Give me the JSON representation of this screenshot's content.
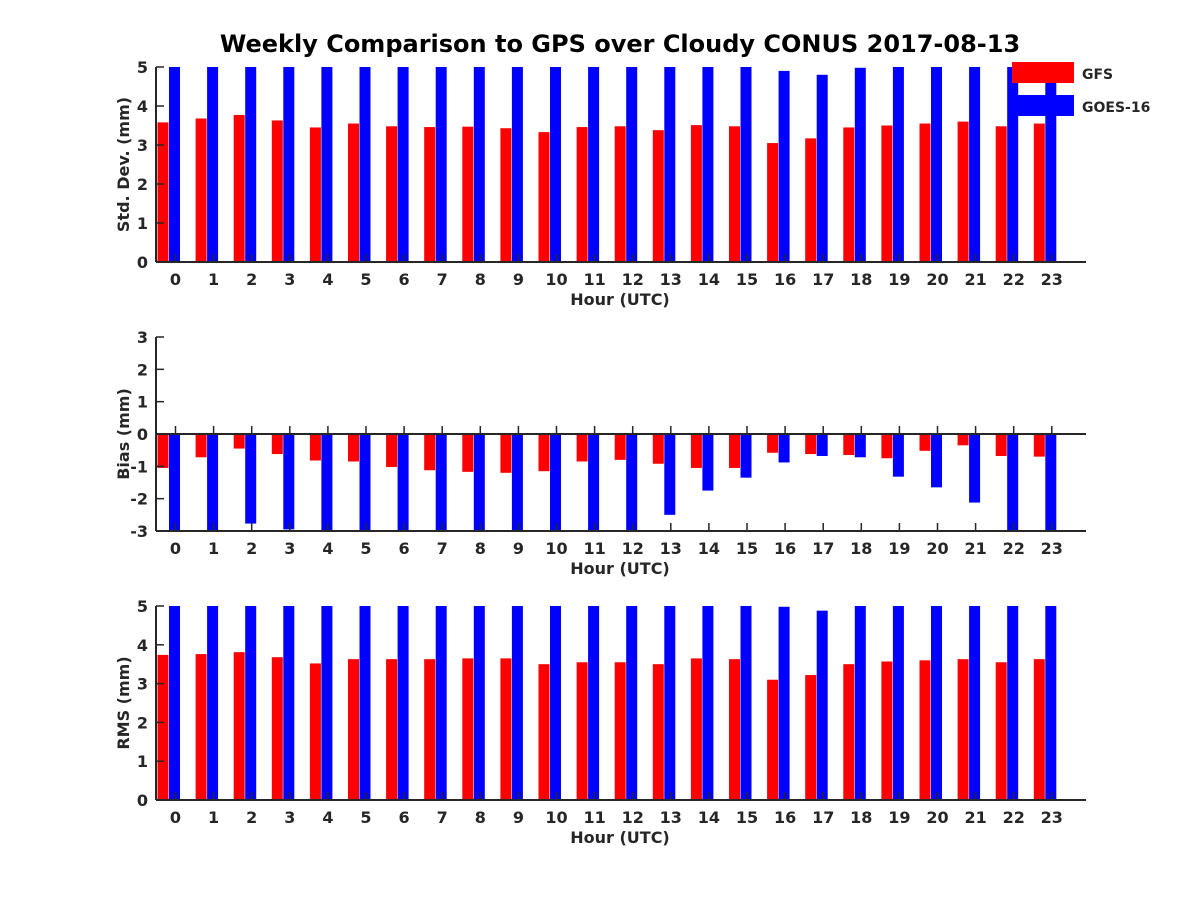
{
  "title": "Weekly Comparison to GPS over Cloudy CONUS 2017-08-13",
  "legend": {
    "placement": "top-right",
    "entries": [
      {
        "name": "GFS",
        "color": "#ff0000"
      },
      {
        "name": "GOES-16",
        "color": "#0000ff"
      }
    ]
  },
  "chart_data": [
    {
      "type": "bar",
      "xlabel": "Hour (UTC)",
      "ylabel": "Std. Dev. (mm)",
      "ylim": [
        0,
        5
      ],
      "yticks": [
        0,
        1,
        2,
        3,
        4,
        5
      ],
      "grid": false,
      "categories": [
        "0",
        "1",
        "2",
        "3",
        "4",
        "5",
        "6",
        "7",
        "8",
        "9",
        "10",
        "11",
        "12",
        "13",
        "14",
        "15",
        "16",
        "17",
        "18",
        "19",
        "20",
        "21",
        "22",
        "23"
      ],
      "series": [
        {
          "name": "GFS",
          "color": "#ff0000",
          "values": [
            3.58,
            3.68,
            3.77,
            3.63,
            3.45,
            3.55,
            3.48,
            3.46,
            3.47,
            3.43,
            3.33,
            3.46,
            3.48,
            3.38,
            3.51,
            3.48,
            3.05,
            3.17,
            3.45,
            3.5,
            3.55,
            3.6,
            3.48,
            3.55
          ]
        },
        {
          "name": "GOES-16",
          "color": "#0000ff",
          "values": [
            5.0,
            5.0,
            5.0,
            5.0,
            5.0,
            5.0,
            5.0,
            5.0,
            5.0,
            5.0,
            5.0,
            5.0,
            5.0,
            5.0,
            5.0,
            5.0,
            4.9,
            4.8,
            4.98,
            5.0,
            5.0,
            5.0,
            5.0,
            4.7
          ]
        }
      ]
    },
    {
      "type": "bar",
      "xlabel": "Hour (UTC)",
      "ylabel": "Bias (mm)",
      "ylim": [
        -3,
        3
      ],
      "yticks": [
        -3,
        -2,
        -1,
        0,
        1,
        2,
        3
      ],
      "grid": false,
      "zero_line": true,
      "categories": [
        "0",
        "1",
        "2",
        "3",
        "4",
        "5",
        "6",
        "7",
        "8",
        "9",
        "10",
        "11",
        "12",
        "13",
        "14",
        "15",
        "16",
        "17",
        "18",
        "19",
        "20",
        "21",
        "22",
        "23"
      ],
      "series": [
        {
          "name": "GFS",
          "color": "#ff0000",
          "values": [
            -1.05,
            -0.72,
            -0.45,
            -0.62,
            -0.82,
            -0.85,
            -1.02,
            -1.12,
            -1.17,
            -1.2,
            -1.15,
            -0.85,
            -0.8,
            -0.92,
            -1.05,
            -1.05,
            -0.58,
            -0.62,
            -0.65,
            -0.75,
            -0.52,
            -0.35,
            -0.68,
            -0.7
          ]
        },
        {
          "name": "GOES-16",
          "color": "#0000ff",
          "values": [
            -3.0,
            -3.0,
            -2.77,
            -2.95,
            -3.0,
            -3.0,
            -3.0,
            -3.0,
            -3.0,
            -3.0,
            -3.0,
            -3.0,
            -2.97,
            -2.5,
            -1.75,
            -1.35,
            -0.88,
            -0.68,
            -0.72,
            -1.32,
            -1.65,
            -2.12,
            -3.0,
            -3.0
          ]
        }
      ]
    },
    {
      "type": "bar",
      "xlabel": "Hour (UTC)",
      "ylabel": "RMS (mm)",
      "ylim": [
        0,
        5
      ],
      "yticks": [
        0,
        1,
        2,
        3,
        4,
        5
      ],
      "grid": false,
      "categories": [
        "0",
        "1",
        "2",
        "3",
        "4",
        "5",
        "6",
        "7",
        "8",
        "9",
        "10",
        "11",
        "12",
        "13",
        "14",
        "15",
        "16",
        "17",
        "18",
        "19",
        "20",
        "21",
        "22",
        "23"
      ],
      "series": [
        {
          "name": "GFS",
          "color": "#ff0000",
          "values": [
            3.74,
            3.76,
            3.81,
            3.68,
            3.52,
            3.63,
            3.63,
            3.63,
            3.65,
            3.65,
            3.5,
            3.55,
            3.55,
            3.5,
            3.65,
            3.63,
            3.1,
            3.22,
            3.5,
            3.57,
            3.6,
            3.63,
            3.55,
            3.63
          ]
        },
        {
          "name": "GOES-16",
          "color": "#0000ff",
          "values": [
            5.0,
            5.0,
            5.0,
            5.0,
            5.0,
            5.0,
            5.0,
            5.0,
            5.0,
            5.0,
            5.0,
            5.0,
            5.0,
            5.0,
            5.0,
            5.0,
            4.98,
            4.88,
            5.0,
            5.0,
            5.0,
            5.0,
            5.0,
            5.0
          ]
        }
      ]
    }
  ]
}
